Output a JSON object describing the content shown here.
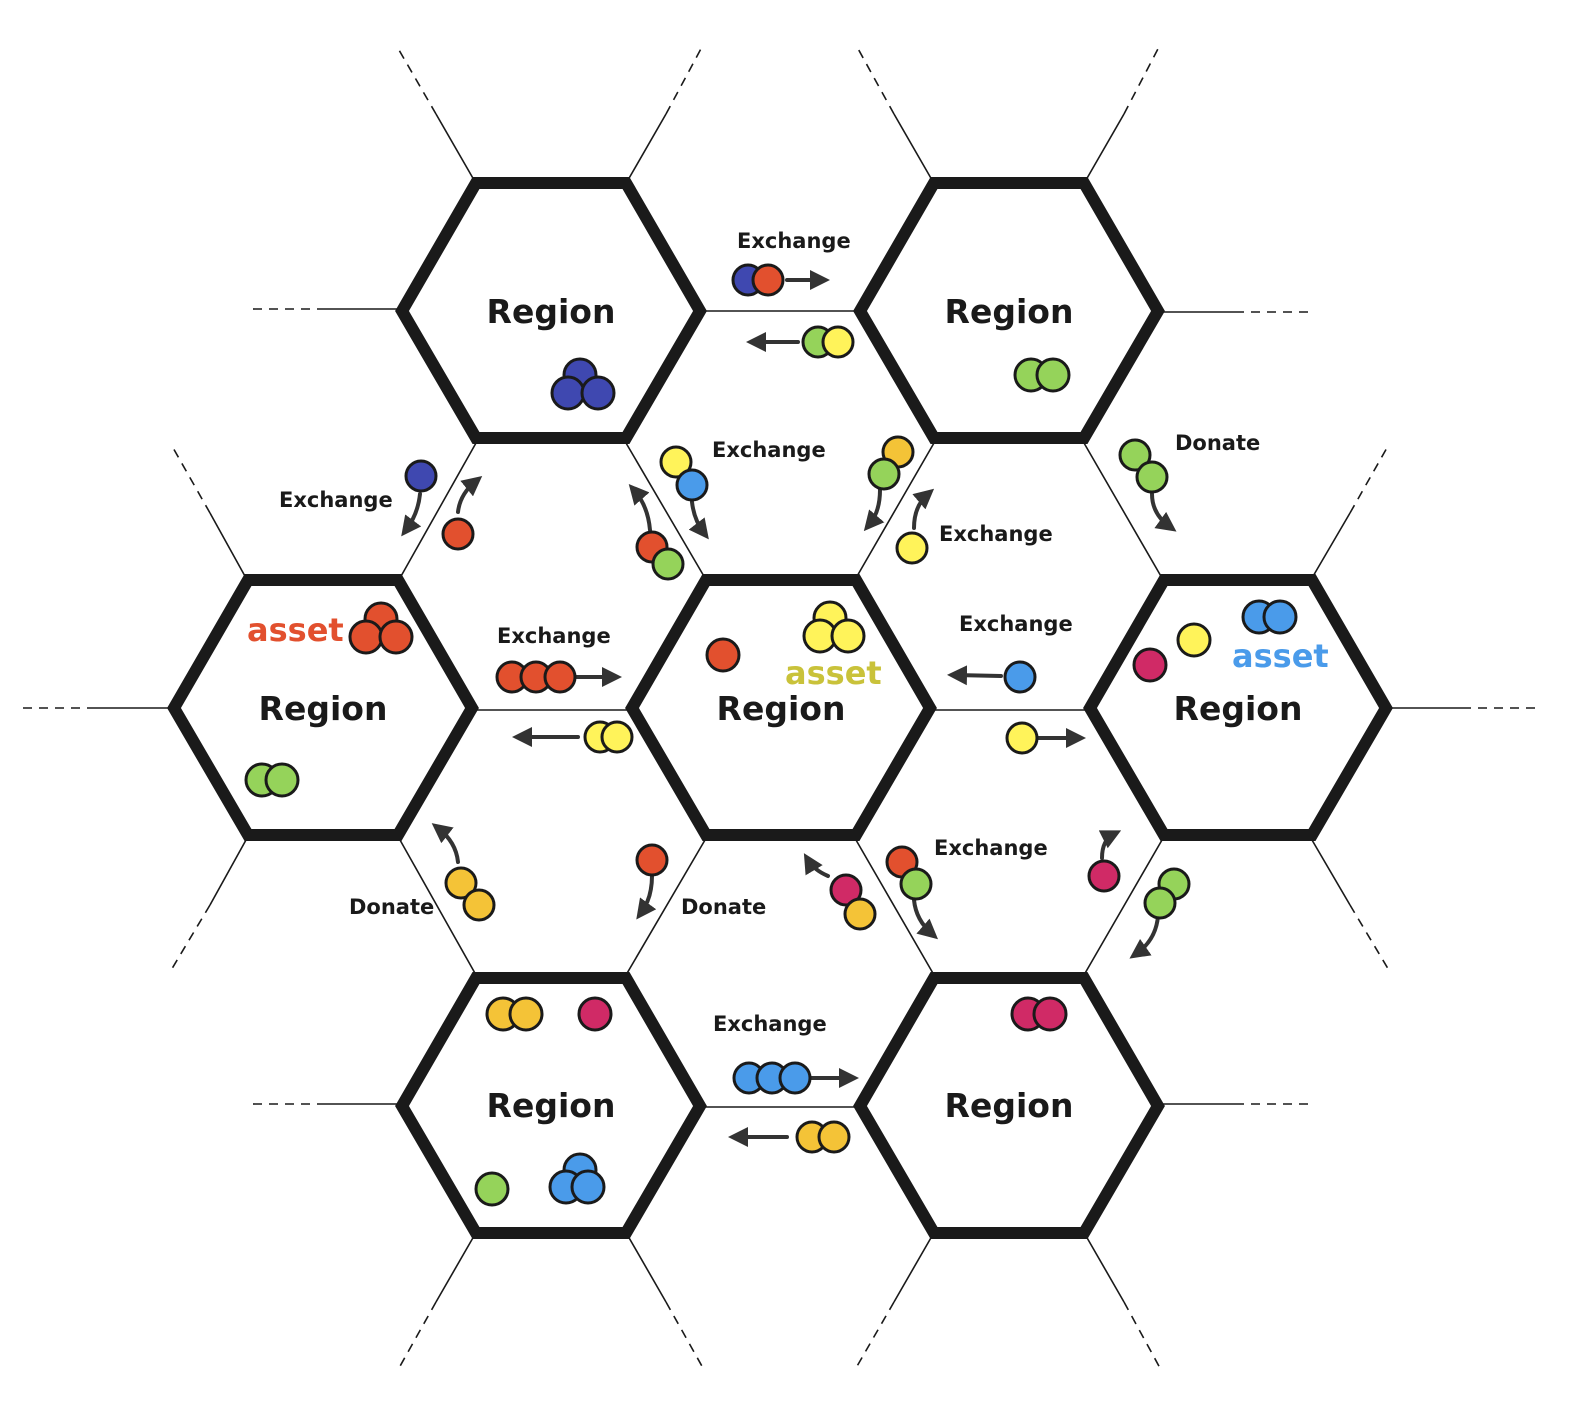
{
  "colors": {
    "red": "#E2502E",
    "navy": "#3F48B0",
    "green": "#95D35A",
    "yellow": "#FFF35A",
    "gold": "#F4C337",
    "blue": "#4A9BEA",
    "crimson": "#D02A66",
    "asset_red": "#E2502E",
    "asset_olive": "#C9C23A",
    "asset_blue": "#4A9BEA",
    "outline": "#1a1a1a",
    "arrow": "#333333"
  },
  "regions": [
    {
      "id": "top-left",
      "label": "Region"
    },
    {
      "id": "top-right",
      "label": "Region"
    },
    {
      "id": "middle-left",
      "label": "Region"
    },
    {
      "id": "center",
      "label": "Region"
    },
    {
      "id": "middle-right",
      "label": "Region"
    },
    {
      "id": "bottom-left",
      "label": "Region"
    },
    {
      "id": "bottom-right",
      "label": "Region"
    }
  ],
  "asset_labels": {
    "middle_left": "asset",
    "center": "asset",
    "middle_right": "asset"
  },
  "flows": {
    "top_pair": "Exchange",
    "upper_left": "Exchange",
    "upper_center": "Exchange",
    "upper_center_right": "Exchange",
    "upper_right": "Donate",
    "middle_left": "Exchange",
    "middle_right": "Exchange",
    "lower_left": "Donate",
    "lower_center": "Donate",
    "lower_center_right": "Exchange",
    "bottom_pair": "Exchange"
  },
  "region_assets": {
    "top_left": [
      "navy",
      "navy",
      "navy"
    ],
    "top_right": [
      "green",
      "green"
    ],
    "middle_left": [
      [
        "red",
        "red",
        "red"
      ],
      [
        "green",
        "green"
      ]
    ],
    "center": [
      [
        "red"
      ],
      [
        "yellow",
        "yellow",
        "yellow"
      ]
    ],
    "middle_right": [
      [
        "crimson"
      ],
      [
        "yellow"
      ],
      [
        "blue",
        "blue"
      ]
    ],
    "bottom_left": [
      [
        "gold",
        "gold"
      ],
      [
        "crimson"
      ],
      [
        "green"
      ],
      [
        "blue",
        "blue",
        "blue"
      ]
    ],
    "bottom_right": [
      "crimson",
      "crimson"
    ]
  },
  "flow_assets": {
    "top_to_right": [
      "navy",
      "red"
    ],
    "top_to_left": [
      "green",
      "yellow"
    ],
    "upper_left_down": [
      "navy"
    ],
    "upper_left_up": [
      "red"
    ],
    "upper_center_down": [
      "yellow",
      "blue"
    ],
    "upper_center_up": [
      "red",
      "green"
    ],
    "upper_center_right_down": [
      "gold",
      "green"
    ],
    "upper_center_right_up": [
      "yellow"
    ],
    "upper_right_down": [
      "green",
      "green"
    ],
    "middle_left_right": [
      "red",
      "red",
      "red"
    ],
    "middle_left_left": [
      "yellow",
      "yellow"
    ],
    "middle_right_left": [
      "blue"
    ],
    "middle_right_right": [
      "yellow"
    ],
    "lower_left_up": [
      "gold",
      "gold"
    ],
    "lower_center_down": [
      "red"
    ],
    "lower_center_up": [
      "crimson",
      "gold"
    ],
    "lower_center_right_down": [
      "red",
      "green"
    ],
    "lower_right_up": [
      "crimson"
    ],
    "lower_right_down": [
      "green",
      "green"
    ],
    "bottom_to_right": [
      "blue",
      "blue",
      "blue"
    ],
    "bottom_to_left": [
      "gold",
      "gold"
    ]
  }
}
